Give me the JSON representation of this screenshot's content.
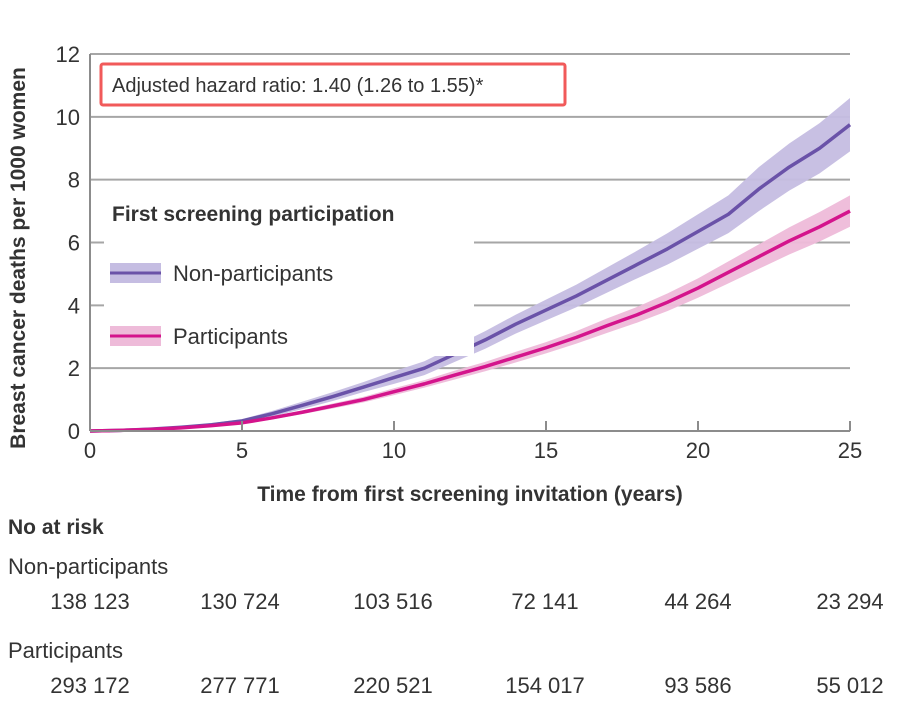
{
  "chart_data": {
    "type": "line",
    "title": "",
    "xlabel": "Time from first screening invitation (years)",
    "ylabel": "Breast cancer deaths per 1000 women",
    "xlim": [
      0,
      25
    ],
    "ylim": [
      0,
      12
    ],
    "x_ticks": [
      0,
      5,
      10,
      15,
      20,
      25
    ],
    "y_ticks": [
      0,
      2,
      4,
      6,
      8,
      10,
      12
    ],
    "x_tick_labels": [
      "0",
      "5",
      "10",
      "15",
      "20",
      "25"
    ],
    "y_tick_labels": [
      "0",
      "2",
      "4",
      "6",
      "8",
      "10",
      "12"
    ],
    "grid": "horizontal",
    "annotation": "Adjusted hazard ratio: 1.40 (1.26 to 1.55)*",
    "annotation_border_color": "#f15a5a",
    "legend": {
      "title": "First screening participation",
      "placement": "left",
      "entries": [
        "Non-participants",
        "Participants"
      ]
    },
    "series": [
      {
        "name": "Non-participants",
        "line_color": "#6a52a8",
        "band_color": "#c5bde2",
        "x": [
          0,
          1,
          2,
          3,
          4,
          5,
          6,
          7,
          8,
          9,
          10,
          11,
          12,
          13,
          14,
          15,
          16,
          17,
          18,
          19,
          20,
          21,
          22,
          23,
          24,
          25
        ],
        "y": [
          0,
          0.02,
          0.06,
          0.12,
          0.2,
          0.32,
          0.55,
          0.82,
          1.1,
          1.4,
          1.7,
          2.0,
          2.45,
          2.9,
          3.4,
          3.85,
          4.3,
          4.8,
          5.3,
          5.8,
          6.35,
          6.9,
          7.7,
          8.4,
          9.0,
          9.75
        ],
        "ci_lower": [
          0,
          0.01,
          0.04,
          0.09,
          0.15,
          0.26,
          0.46,
          0.7,
          0.96,
          1.24,
          1.5,
          1.78,
          2.2,
          2.62,
          3.1,
          3.52,
          3.94,
          4.4,
          4.86,
          5.3,
          5.8,
          6.3,
          7.0,
          7.65,
          8.2,
          8.9
        ],
        "ci_upper": [
          0,
          0.03,
          0.08,
          0.15,
          0.25,
          0.38,
          0.64,
          0.94,
          1.24,
          1.56,
          1.9,
          2.22,
          2.7,
          3.18,
          3.7,
          4.18,
          4.66,
          5.2,
          5.74,
          6.3,
          6.9,
          7.5,
          8.4,
          9.15,
          9.8,
          10.6
        ]
      },
      {
        "name": "Participants",
        "line_color": "#d4148c",
        "band_color": "#eebbd9",
        "x": [
          0,
          1,
          2,
          3,
          4,
          5,
          6,
          7,
          8,
          9,
          10,
          11,
          12,
          13,
          14,
          15,
          16,
          17,
          18,
          19,
          20,
          21,
          22,
          23,
          24,
          25
        ],
        "y": [
          0,
          0.02,
          0.05,
          0.1,
          0.17,
          0.26,
          0.42,
          0.6,
          0.8,
          1.0,
          1.25,
          1.5,
          1.78,
          2.05,
          2.35,
          2.65,
          2.98,
          3.35,
          3.7,
          4.1,
          4.55,
          5.05,
          5.55,
          6.05,
          6.5,
          7.0
        ],
        "ci_lower": [
          0,
          0.01,
          0.04,
          0.08,
          0.14,
          0.22,
          0.37,
          0.54,
          0.72,
          0.91,
          1.14,
          1.38,
          1.64,
          1.9,
          2.18,
          2.47,
          2.78,
          3.12,
          3.45,
          3.82,
          4.24,
          4.7,
          5.16,
          5.62,
          6.03,
          6.5
        ],
        "ci_upper": [
          0,
          0.03,
          0.06,
          0.12,
          0.2,
          0.3,
          0.47,
          0.66,
          0.88,
          1.09,
          1.36,
          1.62,
          1.92,
          2.2,
          2.52,
          2.83,
          3.18,
          3.58,
          3.95,
          4.38,
          4.86,
          5.4,
          5.94,
          6.48,
          6.97,
          7.5
        ]
      }
    ]
  },
  "risk_table": {
    "title": "No at risk",
    "time_points": [
      0,
      5,
      10,
      15,
      20,
      25
    ],
    "groups": [
      {
        "label": "Non-participants",
        "values": [
          "138 123",
          "130 724",
          "103 516",
          "72 141",
          "44 264",
          "23 294"
        ]
      },
      {
        "label": "Participants",
        "values": [
          "293 172",
          "277 771",
          "220 521",
          "154 017",
          "93 586",
          "55 012"
        ]
      }
    ]
  }
}
